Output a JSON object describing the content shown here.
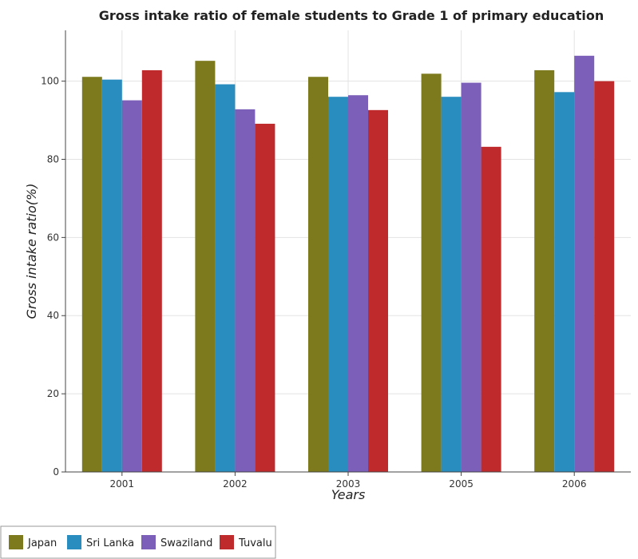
{
  "chart_data": {
    "type": "bar",
    "title": "Gross intake ratio of female students to Grade 1 of primary education",
    "xlabel": "Years",
    "ylabel": "Gross intake ratio(%)",
    "categories": [
      "2001",
      "2002",
      "2003",
      "2005",
      "2006"
    ],
    "ylim": [
      0,
      113
    ],
    "yticks": [
      0,
      20,
      40,
      60,
      80,
      100
    ],
    "grid": true,
    "legend_position": "bottom-left",
    "series": [
      {
        "name": "Japan",
        "color": "#7c7a1c",
        "values": [
          101.1,
          105.2,
          101.1,
          101.9,
          102.8
        ]
      },
      {
        "name": "Sri Lanka",
        "color": "#2a8dc0",
        "values": [
          100.4,
          99.2,
          96.0,
          96.0,
          97.2
        ]
      },
      {
        "name": "Swaziland",
        "color": "#7b5fb8",
        "values": [
          95.1,
          92.8,
          96.4,
          99.6,
          106.5
        ]
      },
      {
        "name": "Tuvalu",
        "color": "#bf2a2d",
        "values": [
          102.8,
          89.1,
          92.6,
          83.2,
          100.0
        ]
      }
    ]
  }
}
